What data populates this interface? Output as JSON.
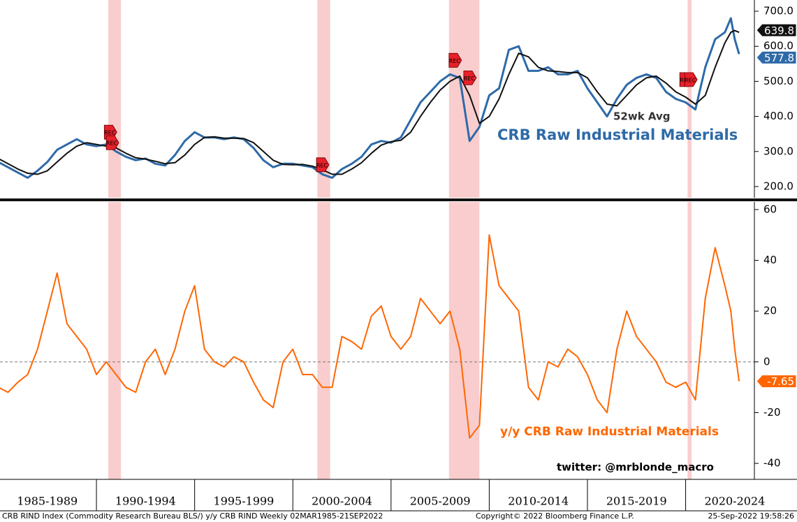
{
  "chart_data": [
    {
      "type": "line",
      "xlim": [
        1985.09,
        2023.5
      ],
      "ylim": [
        168,
        732
      ],
      "yticks": [
        {
          "value": 700,
          "label": "700.0"
        },
        {
          "value": 600,
          "label": "600.0"
        },
        {
          "value": 500,
          "label": "500.0"
        },
        {
          "value": 400,
          "label": "400.0"
        },
        {
          "value": 300,
          "label": "300.0"
        },
        {
          "value": 200,
          "label": "200.0"
        }
      ],
      "recessions": [
        [
          1990.6,
          1991.25
        ],
        [
          2001.25,
          2001.9
        ],
        [
          2007.95,
          2009.5
        ],
        [
          2020.1,
          2020.3
        ]
      ],
      "rec_label": "REC",
      "rec_markers": [
        {
          "x": 1990.65,
          "y": 355
        },
        {
          "x": 1990.75,
          "y": 325
        },
        {
          "x": 2001.45,
          "y": 262
        },
        {
          "x": 2008.2,
          "y": 560
        },
        {
          "x": 2008.95,
          "y": 510
        },
        {
          "x": 2019.95,
          "y": 505
        },
        {
          "x": 2020.2,
          "y": 505
        }
      ],
      "annotations": [
        "52wk Avg",
        "CRB Raw Industrial Materials"
      ],
      "series": [
        {
          "name": "CRB Raw Industrial Materials",
          "color": "#2e6aa8",
          "x": [
            1985.0,
            1985.5,
            1986.0,
            1986.5,
            1987.0,
            1987.5,
            1988.0,
            1988.5,
            1989.0,
            1989.5,
            1990.0,
            1990.5,
            1991.0,
            1991.5,
            1992.0,
            1992.5,
            1993.0,
            1993.5,
            1994.0,
            1994.5,
            1995.0,
            1995.5,
            1996.0,
            1996.5,
            1997.0,
            1997.5,
            1998.0,
            1998.5,
            1999.0,
            1999.5,
            2000.0,
            2000.5,
            2001.0,
            2001.5,
            2002.0,
            2002.5,
            2003.0,
            2003.5,
            2004.0,
            2004.5,
            2005.0,
            2005.5,
            2006.0,
            2006.5,
            2007.0,
            2007.5,
            2008.0,
            2008.5,
            2009.0,
            2009.5,
            2010.0,
            2010.5,
            2011.0,
            2011.5,
            2012.0,
            2012.5,
            2013.0,
            2013.5,
            2014.0,
            2014.5,
            2015.0,
            2015.5,
            2016.0,
            2016.5,
            2017.0,
            2017.5,
            2018.0,
            2018.5,
            2019.0,
            2019.5,
            2020.0,
            2020.5,
            2021.0,
            2021.5,
            2022.0,
            2022.3,
            2022.5,
            2022.72
          ],
          "values": [
            270,
            255,
            240,
            225,
            245,
            270,
            305,
            320,
            335,
            320,
            315,
            320,
            300,
            285,
            275,
            280,
            265,
            260,
            290,
            330,
            355,
            340,
            340,
            335,
            340,
            335,
            310,
            275,
            255,
            265,
            265,
            260,
            255,
            235,
            225,
            250,
            265,
            285,
            320,
            330,
            325,
            340,
            390,
            440,
            470,
            500,
            520,
            510,
            330,
            370,
            460,
            480,
            590,
            600,
            530,
            530,
            540,
            520,
            520,
            530,
            480,
            440,
            400,
            450,
            490,
            510,
            520,
            510,
            470,
            450,
            440,
            420,
            540,
            620,
            640,
            680,
            620,
            577.8
          ]
        },
        {
          "name": "52wk Avg",
          "color": "#111111",
          "x": [
            1985.0,
            1985.5,
            1986.0,
            1986.5,
            1987.0,
            1987.5,
            1988.0,
            1988.5,
            1989.0,
            1989.5,
            1990.0,
            1990.5,
            1991.0,
            1991.5,
            1992.0,
            1992.5,
            1993.0,
            1993.5,
            1994.0,
            1994.5,
            1995.0,
            1995.5,
            1996.0,
            1996.5,
            1997.0,
            1997.5,
            1998.0,
            1998.5,
            1999.0,
            1999.5,
            2000.0,
            2000.5,
            2001.0,
            2001.5,
            2002.0,
            2002.5,
            2003.0,
            2003.5,
            2004.0,
            2004.5,
            2005.0,
            2005.5,
            2006.0,
            2006.5,
            2007.0,
            2007.5,
            2008.0,
            2008.5,
            2009.0,
            2009.5,
            2010.0,
            2010.5,
            2011.0,
            2011.5,
            2012.0,
            2012.5,
            2013.0,
            2013.5,
            2014.0,
            2014.5,
            2015.0,
            2015.5,
            2016.0,
            2016.5,
            2017.0,
            2017.5,
            2018.0,
            2018.5,
            2019.0,
            2019.5,
            2020.0,
            2020.5,
            2021.0,
            2021.5,
            2022.0,
            2022.3,
            2022.5,
            2022.72
          ],
          "values": [
            280,
            265,
            250,
            238,
            235,
            245,
            270,
            295,
            315,
            325,
            320,
            315,
            310,
            295,
            282,
            278,
            272,
            265,
            268,
            290,
            320,
            340,
            342,
            338,
            338,
            337,
            325,
            300,
            275,
            263,
            262,
            263,
            258,
            248,
            235,
            235,
            250,
            268,
            295,
            318,
            328,
            332,
            355,
            400,
            440,
            475,
            500,
            515,
            460,
            380,
            400,
            450,
            520,
            580,
            570,
            540,
            530,
            528,
            525,
            525,
            510,
            470,
            435,
            430,
            460,
            490,
            510,
            515,
            495,
            470,
            455,
            435,
            460,
            540,
            610,
            640,
            645,
            639.8
          ]
        }
      ]
    },
    {
      "type": "line",
      "xlim": [
        1985.09,
        2023.5
      ],
      "ylim": [
        -46.3,
        63
      ],
      "yticks": [
        60,
        40,
        20,
        0,
        -20,
        -40
      ],
      "hline": 0,
      "period_starts": [
        1985,
        1990,
        1995,
        2000,
        2005,
        2010,
        2015,
        2020
      ],
      "period_labels": [
        "1985-1989",
        "1990-1994",
        "1995-1999",
        "2000-2004",
        "2005-2009",
        "2010-2014",
        "2015-2019",
        "2020-2024"
      ],
      "annotations": [
        "y/y CRB Raw Industrial Materials",
        "twitter:  @mrblonde_macro"
      ],
      "series": [
        {
          "name": "y/y CRB Raw Industrial Materials",
          "color": "#ff6600",
          "x": [
            1985.0,
            1985.5,
            1986.0,
            1986.5,
            1987.0,
            1987.5,
            1988.0,
            1988.5,
            1989.0,
            1989.5,
            1990.0,
            1990.5,
            1991.0,
            1991.5,
            1992.0,
            1992.5,
            1993.0,
            1993.5,
            1994.0,
            1994.5,
            1995.0,
            1995.5,
            1996.0,
            1996.5,
            1997.0,
            1997.5,
            1998.0,
            1998.5,
            1999.0,
            1999.5,
            2000.0,
            2000.5,
            2001.0,
            2001.5,
            2002.0,
            2002.5,
            2003.0,
            2003.5,
            2004.0,
            2004.5,
            2005.0,
            2005.5,
            2006.0,
            2006.5,
            2007.0,
            2007.5,
            2008.0,
            2008.5,
            2009.0,
            2009.5,
            2010.0,
            2010.5,
            2011.0,
            2011.5,
            2012.0,
            2012.5,
            2013.0,
            2013.5,
            2014.0,
            2014.5,
            2015.0,
            2015.5,
            2016.0,
            2016.5,
            2017.0,
            2017.5,
            2018.0,
            2018.5,
            2019.0,
            2019.5,
            2020.0,
            2020.5,
            2021.0,
            2021.5,
            2022.0,
            2022.3,
            2022.5,
            2022.72
          ],
          "values": [
            -10,
            -12,
            -8,
            -5,
            5,
            20,
            35,
            15,
            10,
            5,
            -5,
            0,
            -5,
            -10,
            -12,
            0,
            5,
            -5,
            5,
            20,
            30,
            5,
            0,
            -2,
            2,
            0,
            -8,
            -15,
            -18,
            0,
            5,
            -5,
            -5,
            -10,
            -10,
            10,
            8,
            5,
            18,
            22,
            10,
            5,
            10,
            25,
            20,
            15,
            20,
            5,
            -30,
            -25,
            50,
            30,
            25,
            20,
            -10,
            -15,
            0,
            -2,
            5,
            2,
            -5,
            -15,
            -20,
            5,
            20,
            10,
            5,
            0,
            -8,
            -10,
            -8,
            -15,
            25,
            45,
            30,
            20,
            5,
            -7.65
          ]
        }
      ]
    }
  ],
  "footer": [
    "CRB RIND Index (Commodity Research Bureau BLS/) y/y CRB RIND  Weekly 02MAR1985-21SEP2022",
    "Copyright© 2022 Bloomberg Finance L.P.",
    "25-Sep-2022 19:58:26"
  ]
}
